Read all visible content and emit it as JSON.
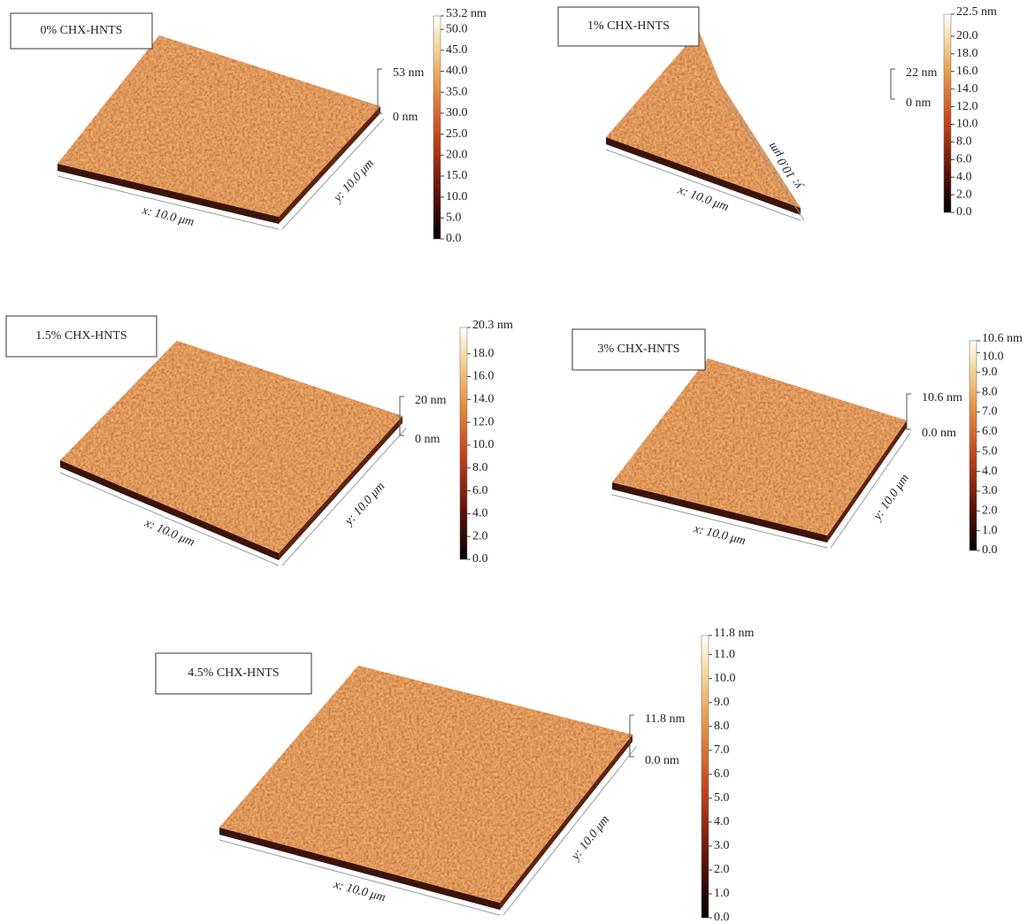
{
  "panels": [
    {
      "label": "0% CHX-HNTS",
      "x_axis": "x: 10.0 μm",
      "y_axis": "y: 10.0 μm",
      "height_top": "53 nm",
      "height_bottom": "0 nm",
      "colorbar_max": {
        "value": 53.2,
        "label": "53.2 nm"
      },
      "colorbar_ticks": [
        {
          "value": 0,
          "label": "0.0"
        },
        {
          "value": 5,
          "label": "5.0"
        },
        {
          "value": 10,
          "label": "10.0"
        },
        {
          "value": 15,
          "label": "15.0"
        },
        {
          "value": 20,
          "label": "20.0"
        },
        {
          "value": 25,
          "label": "25.0"
        },
        {
          "value": 30,
          "label": "30.0"
        },
        {
          "value": 35,
          "label": "35.0"
        },
        {
          "value": 40,
          "label": "40.0"
        },
        {
          "value": 45,
          "label": "45.0"
        },
        {
          "value": 50,
          "label": "50.0"
        }
      ]
    },
    {
      "label": "1% CHX-HNTS",
      "x_axis": "x: 10.0 μm",
      "y_axis": "y: 10.0 μm",
      "height_top": "22 nm",
      "height_bottom": "0 nm",
      "colorbar_max": {
        "value": 22.5,
        "label": "22.5 nm"
      },
      "colorbar_ticks": [
        {
          "value": 0,
          "label": "0.0"
        },
        {
          "value": 2,
          "label": "2.0"
        },
        {
          "value": 4,
          "label": "4.0"
        },
        {
          "value": 6,
          "label": "6.0"
        },
        {
          "value": 8,
          "label": "8.0"
        },
        {
          "value": 10,
          "label": "10.0"
        },
        {
          "value": 12,
          "label": "12.0"
        },
        {
          "value": 14,
          "label": "14.0"
        },
        {
          "value": 16,
          "label": "16.0"
        },
        {
          "value": 18,
          "label": "18.0"
        },
        {
          "value": 20,
          "label": "20.0"
        }
      ]
    },
    {
      "label": "1.5% CHX-HNTS",
      "x_axis": "x: 10.0 μm",
      "y_axis": "y: 10.0 μm",
      "height_top": "20 nm",
      "height_bottom": "0 nm",
      "colorbar_max": {
        "value": 20.3,
        "label": "20.3 nm"
      },
      "colorbar_ticks": [
        {
          "value": 0,
          "label": "0.0"
        },
        {
          "value": 2,
          "label": "2.0"
        },
        {
          "value": 4,
          "label": "4.0"
        },
        {
          "value": 6,
          "label": "6.0"
        },
        {
          "value": 8,
          "label": "8.0"
        },
        {
          "value": 10,
          "label": "10.0"
        },
        {
          "value": 12,
          "label": "12.0"
        },
        {
          "value": 14,
          "label": "14.0"
        },
        {
          "value": 16,
          "label": "16.0"
        },
        {
          "value": 18,
          "label": "18.0"
        }
      ]
    },
    {
      "label": "3% CHX-HNTS",
      "x_axis": "x: 10.0 μm",
      "y_axis": "y: 10.0 μm",
      "height_top": "10.6 nm",
      "height_bottom": "0.0 nm",
      "colorbar_max": {
        "value": 10.6,
        "label": "10.6 nm"
      },
      "colorbar_ticks": [
        {
          "value": 0,
          "label": "0.0"
        },
        {
          "value": 1,
          "label": "1.0"
        },
        {
          "value": 2,
          "label": "2.0"
        },
        {
          "value": 3,
          "label": "3.0"
        },
        {
          "value": 4,
          "label": "4.0"
        },
        {
          "value": 5,
          "label": "5.0"
        },
        {
          "value": 6,
          "label": "6.0"
        },
        {
          "value": 7,
          "label": "7.0"
        },
        {
          "value": 8,
          "label": "8.0"
        },
        {
          "value": 9,
          "label": "9.0"
        },
        {
          "value": 10,
          "label": "10.0"
        }
      ]
    },
    {
      "label": "4.5% CHX-HNTS",
      "x_axis": "x: 10.0 μm",
      "y_axis": "y: 10.0 μm",
      "height_top": "11.8 nm",
      "height_bottom": "0.0 nm",
      "colorbar_max": {
        "value": 11.8,
        "label": "11.8 nm"
      },
      "colorbar_ticks": [
        {
          "value": 0,
          "label": "0.0"
        },
        {
          "value": 1,
          "label": "1.0"
        },
        {
          "value": 2,
          "label": "2.0"
        },
        {
          "value": 3,
          "label": "3.0"
        },
        {
          "value": 4,
          "label": "4.0"
        },
        {
          "value": 5,
          "label": "5.0"
        },
        {
          "value": 6,
          "label": "6.0"
        },
        {
          "value": 7,
          "label": "7.0"
        },
        {
          "value": 8,
          "label": "8.0"
        },
        {
          "value": 9,
          "label": "9.0"
        },
        {
          "value": 10,
          "label": "10.0"
        },
        {
          "value": 11,
          "label": "11.0"
        }
      ]
    }
  ]
}
